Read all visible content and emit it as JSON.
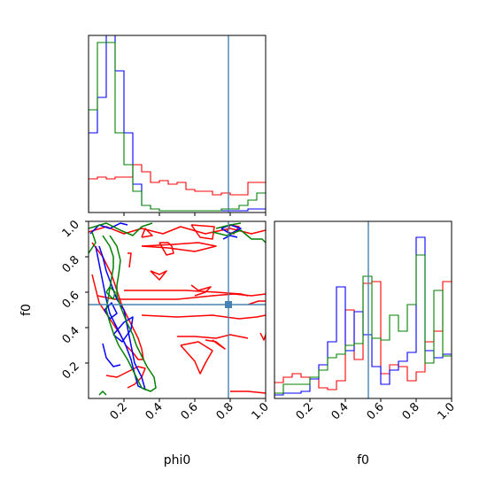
{
  "chart_data": {
    "type": "corner",
    "parameters": [
      "phi0",
      "f0"
    ],
    "truths": {
      "phi0": 0.79,
      "f0": 0.53
    },
    "truth_color": "#4682b4",
    "series_colors": {
      "red": "#ff0000",
      "blue": "#0000ff",
      "green": "#008000"
    },
    "ticks": [
      "0.2",
      "0.4",
      "0.6",
      "0.8",
      "1.0"
    ],
    "ticks_2d_y": [
      "0.2",
      "0.4",
      "0.6",
      "0.8",
      "1.0"
    ],
    "ticks_f0_x": [
      "0.2",
      "0.4",
      "0.6",
      "0.8",
      "1.0"
    ],
    "xlabels": {
      "phi0": "phi0",
      "f0": "f0"
    },
    "ylabel_2d": "f0",
    "hist_phi0": {
      "bin_edges": [
        0.0,
        0.05,
        0.1,
        0.15,
        0.2,
        0.25,
        0.3,
        0.35,
        0.4,
        0.45,
        0.5,
        0.55,
        0.6,
        0.65,
        0.7,
        0.75,
        0.8,
        0.85,
        0.9,
        0.95,
        1.0
      ],
      "red": [
        0.19,
        0.2,
        0.19,
        0.2,
        0.2,
        0.27,
        0.23,
        0.17,
        0.18,
        0.16,
        0.17,
        0.13,
        0.12,
        0.12,
        0.1,
        0.11,
        0.1,
        0.1,
        0.17,
        0.17
      ],
      "blue": [
        0.45,
        0.65,
        1.0,
        0.8,
        0.45,
        0.16,
        0.04,
        0.02,
        0.01,
        0.01,
        0.01,
        0.01,
        0.01,
        0.01,
        0.01,
        0.01,
        0.01,
        0.01,
        0.02,
        0.02
      ],
      "green": [
        0.58,
        0.96,
        0.96,
        0.45,
        0.27,
        0.12,
        0.04,
        0.02,
        0.01,
        0.01,
        0.01,
        0.01,
        0.01,
        0.01,
        0.01,
        0.02,
        0.02,
        0.04,
        0.07,
        0.11
      ]
    },
    "hist_f0": {
      "bin_edges": [
        0.0,
        0.05,
        0.1,
        0.15,
        0.2,
        0.25,
        0.3,
        0.35,
        0.4,
        0.45,
        0.5,
        0.55,
        0.6,
        0.65,
        0.7,
        0.75,
        0.8,
        0.85,
        0.9,
        0.95,
        1.0
      ],
      "red": [
        0.09,
        0.12,
        0.14,
        0.12,
        0.11,
        0.06,
        0.05,
        0.1,
        0.5,
        0.22,
        0.65,
        0.66,
        0.14,
        0.19,
        0.18,
        0.1,
        0.15,
        0.32,
        0.38,
        0.66
      ],
      "blue": [
        0.02,
        0.03,
        0.03,
        0.04,
        0.11,
        0.19,
        0.32,
        0.63,
        0.27,
        0.49,
        0.36,
        0.18,
        0.08,
        0.16,
        0.21,
        0.26,
        0.91,
        0.27,
        0.23,
        0.25
      ],
      "green": [
        0.03,
        0.08,
        0.08,
        0.08,
        0.12,
        0.16,
        0.23,
        0.25,
        0.3,
        0.31,
        0.69,
        0.34,
        0.33,
        0.47,
        0.38,
        0.53,
        0.81,
        0.2,
        0.61,
        0.24
      ]
    },
    "contours_2d": {
      "red": [
        [
          [
            0.0,
            0.94
          ],
          [
            0.1,
            0.97
          ],
          [
            0.2,
            0.93
          ],
          [
            0.3,
            0.96
          ],
          [
            0.42,
            0.93
          ],
          [
            0.52,
            0.97
          ],
          [
            0.66,
            0.93
          ],
          [
            0.8,
            0.96
          ],
          [
            0.92,
            0.93
          ],
          [
            1.0,
            0.95
          ]
        ],
        [
          [
            0.3,
            0.86
          ],
          [
            0.45,
            0.85
          ],
          [
            0.6,
            0.83
          ],
          [
            0.72,
            0.86
          ],
          [
            0.62,
            0.88
          ],
          [
            0.48,
            0.87
          ],
          [
            0.3,
            0.86
          ]
        ],
        [
          [
            0.3,
            0.91
          ],
          [
            0.32,
            0.96
          ],
          [
            0.36,
            0.92
          ],
          [
            0.3,
            0.91
          ]
        ],
        [
          [
            0.4,
            0.88
          ],
          [
            0.45,
            0.88
          ],
          [
            0.47,
            0.86
          ],
          [
            0.48,
            0.82
          ],
          [
            0.44,
            0.81
          ],
          [
            0.4,
            0.88
          ]
        ],
        [
          [
            0.58,
            0.98
          ],
          [
            0.63,
            0.91
          ],
          [
            0.7,
            0.9
          ],
          [
            0.71,
            0.97
          ],
          [
            0.58,
            0.98
          ]
        ],
        [
          [
            0.78,
            0.94
          ],
          [
            0.82,
            0.93
          ],
          [
            0.85,
            0.97
          ],
          [
            0.8,
            0.98
          ],
          [
            0.78,
            0.94
          ]
        ],
        [
          [
            0.22,
            0.82
          ],
          [
            0.24,
            0.82
          ],
          [
            0.23,
            0.74
          ]
        ],
        [
          [
            0.35,
            0.72
          ],
          [
            0.4,
            0.7
          ],
          [
            0.44,
            0.72
          ],
          [
            0.4,
            0.67
          ],
          [
            0.35,
            0.72
          ]
        ],
        [
          [
            0.58,
            0.64
          ],
          [
            0.62,
            0.61
          ],
          [
            0.69,
            0.63
          ],
          [
            0.66,
            0.6
          ],
          [
            0.6,
            0.58
          ]
        ],
        [
          [
            0.2,
            0.61
          ],
          [
            0.28,
            0.61
          ],
          [
            0.4,
            0.61
          ],
          [
            0.55,
            0.61
          ],
          [
            0.72,
            0.6
          ],
          [
            0.86,
            0.59
          ],
          [
            0.9,
            0.58
          ]
        ],
        [
          [
            0.05,
            0.58
          ],
          [
            0.15,
            0.56
          ],
          [
            0.3,
            0.56
          ],
          [
            0.5,
            0.56
          ],
          [
            0.7,
            0.58
          ],
          [
            0.82,
            0.59
          ],
          [
            0.92,
            0.58
          ],
          [
            1.0,
            0.59
          ]
        ],
        [
          [
            0.3,
            0.47
          ],
          [
            0.5,
            0.46
          ],
          [
            0.7,
            0.47
          ],
          [
            0.85,
            0.45
          ],
          [
            0.95,
            0.46
          ],
          [
            1.0,
            0.47
          ]
        ],
        [
          [
            0.9,
            0.53
          ],
          [
            0.96,
            0.55
          ],
          [
            1.0,
            0.55
          ]
        ],
        [
          [
            0.5,
            0.35
          ],
          [
            0.6,
            0.35
          ],
          [
            0.72,
            0.34
          ],
          [
            0.8,
            0.36
          ],
          [
            0.9,
            0.34
          ]
        ],
        [
          [
            0.52,
            0.3
          ],
          [
            0.62,
            0.32
          ],
          [
            0.7,
            0.27
          ],
          [
            0.66,
            0.2
          ],
          [
            0.63,
            0.14
          ],
          [
            0.6,
            0.21
          ],
          [
            0.52,
            0.3
          ]
        ],
        [
          [
            0.66,
            0.33
          ],
          [
            0.72,
            0.32
          ],
          [
            0.77,
            0.28
          ],
          [
            0.74,
            0.3
          ],
          [
            0.7,
            0.33
          ]
        ],
        [
          [
            0.97,
            0.37
          ],
          [
            0.99,
            0.33
          ],
          [
            1.0,
            0.36
          ]
        ],
        [
          [
            0.8,
            0.04
          ],
          [
            0.9,
            0.04
          ],
          [
            1.0,
            0.03
          ]
        ],
        [
          [
            0.1,
            0.13
          ],
          [
            0.16,
            0.12
          ],
          [
            0.22,
            0.15
          ],
          [
            0.28,
            0.18
          ],
          [
            0.32,
            0.17
          ],
          [
            0.3,
            0.12
          ],
          [
            0.26,
            0.08
          ],
          [
            0.22,
            0.06
          ]
        ],
        [
          [
            0.02,
            0.88
          ],
          [
            0.05,
            0.84
          ],
          [
            0.08,
            0.8
          ],
          [
            0.1,
            0.76
          ],
          [
            0.13,
            0.7
          ],
          [
            0.15,
            0.64
          ],
          [
            0.17,
            0.58
          ],
          [
            0.19,
            0.52
          ],
          [
            0.22,
            0.46
          ],
          [
            0.25,
            0.4
          ],
          [
            0.28,
            0.34
          ],
          [
            0.3,
            0.28
          ],
          [
            0.31,
            0.22
          ],
          [
            0.28,
            0.22
          ],
          [
            0.25,
            0.26
          ],
          [
            0.21,
            0.3
          ],
          [
            0.18,
            0.36
          ],
          [
            0.14,
            0.42
          ],
          [
            0.1,
            0.48
          ],
          [
            0.06,
            0.54
          ],
          [
            0.04,
            0.62
          ],
          [
            0.02,
            0.7
          ]
        ]
      ],
      "blue": [
        [
          [
            0.01,
            0.93
          ],
          [
            0.06,
            0.98
          ],
          [
            0.12,
            0.96
          ],
          [
            0.18,
            0.99
          ],
          [
            0.22,
            0.98
          ]
        ],
        [
          [
            0.04,
            0.86
          ],
          [
            0.06,
            0.76
          ],
          [
            0.08,
            0.66
          ],
          [
            0.1,
            0.56
          ],
          [
            0.12,
            0.48
          ],
          [
            0.15,
            0.42
          ],
          [
            0.18,
            0.36
          ],
          [
            0.21,
            0.3
          ],
          [
            0.24,
            0.22
          ],
          [
            0.26,
            0.14
          ],
          [
            0.28,
            0.07
          ],
          [
            0.32,
            0.05
          ],
          [
            0.3,
            0.12
          ],
          [
            0.26,
            0.2
          ],
          [
            0.24,
            0.3
          ],
          [
            0.22,
            0.4
          ],
          [
            0.2,
            0.5
          ],
          [
            0.16,
            0.56
          ],
          [
            0.13,
            0.64
          ],
          [
            0.1,
            0.72
          ],
          [
            0.08,
            0.8
          ],
          [
            0.06,
            0.86
          ]
        ],
        [
          [
            0.09,
            0.5
          ],
          [
            0.12,
            0.45
          ],
          [
            0.16,
            0.48
          ],
          [
            0.13,
            0.54
          ],
          [
            0.09,
            0.5
          ]
        ],
        [
          [
            0.14,
            0.36
          ],
          [
            0.19,
            0.32
          ],
          [
            0.24,
            0.39
          ],
          [
            0.25,
            0.46
          ],
          [
            0.2,
            0.43
          ],
          [
            0.14,
            0.36
          ]
        ],
        [
          [
            0.08,
            0.31
          ],
          [
            0.1,
            0.23
          ],
          [
            0.14,
            0.18
          ],
          [
            0.18,
            0.19
          ]
        ],
        [
          [
            0.75,
            0.96
          ],
          [
            0.8,
            0.93
          ],
          [
            0.86,
            0.96
          ],
          [
            0.8,
            0.98
          ],
          [
            0.75,
            0.96
          ]
        ],
        [
          [
            0.76,
            0.9
          ],
          [
            0.8,
            0.92
          ],
          [
            0.84,
            0.91
          ]
        ]
      ],
      "green": [
        [
          [
            0.0,
            0.96
          ],
          [
            0.1,
            0.99
          ],
          [
            0.18,
            0.95
          ],
          [
            0.25,
            0.92
          ],
          [
            0.3,
            0.97
          ],
          [
            0.36,
            0.99
          ]
        ],
        [
          [
            0.08,
            0.92
          ],
          [
            0.12,
            0.86
          ],
          [
            0.14,
            0.8
          ],
          [
            0.14,
            0.74
          ],
          [
            0.13,
            0.68
          ],
          [
            0.12,
            0.62
          ],
          [
            0.11,
            0.56
          ],
          [
            0.1,
            0.5
          ],
          [
            0.12,
            0.43
          ],
          [
            0.14,
            0.37
          ],
          [
            0.17,
            0.3
          ],
          [
            0.22,
            0.22
          ],
          [
            0.27,
            0.12
          ],
          [
            0.3,
            0.06
          ],
          [
            0.35,
            0.04
          ],
          [
            0.38,
            0.06
          ],
          [
            0.37,
            0.12
          ],
          [
            0.33,
            0.18
          ],
          [
            0.3,
            0.24
          ],
          [
            0.27,
            0.3
          ],
          [
            0.25,
            0.36
          ],
          [
            0.22,
            0.42
          ],
          [
            0.2,
            0.47
          ],
          [
            0.18,
            0.52
          ],
          [
            0.16,
            0.58
          ],
          [
            0.16,
            0.64
          ],
          [
            0.17,
            0.7
          ],
          [
            0.18,
            0.78
          ],
          [
            0.16,
            0.86
          ],
          [
            0.12,
            0.92
          ]
        ],
        [
          [
            0.1,
            0.6
          ],
          [
            0.12,
            0.63
          ],
          [
            0.15,
            0.6
          ],
          [
            0.14,
            0.56
          ],
          [
            0.1,
            0.6
          ]
        ],
        [
          [
            0.0,
            0.82
          ],
          [
            0.04,
            0.88
          ],
          [
            0.02,
            0.94
          ]
        ],
        [
          [
            0.7,
            0.94
          ],
          [
            0.78,
            0.92
          ],
          [
            0.86,
            0.95
          ],
          [
            0.92,
            0.9
          ],
          [
            0.98,
            0.9
          ],
          [
            1.0,
            0.88
          ]
        ],
        [
          [
            0.72,
            0.96
          ],
          [
            0.8,
            0.98
          ],
          [
            0.86,
            0.99
          ]
        ],
        [
          [
            0.06,
            0.02
          ],
          [
            0.08,
            0.04
          ],
          [
            0.1,
            0.02
          ]
        ]
      ]
    }
  }
}
